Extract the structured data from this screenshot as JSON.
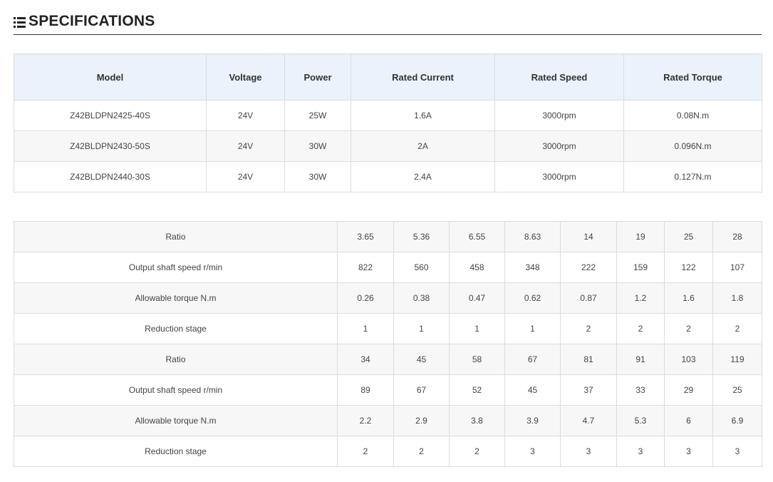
{
  "header": {
    "title": "SPECIFICATIONS",
    "icon": "list-icon"
  },
  "spec_table": {
    "columns": [
      "Model",
      "Voltage",
      "Power",
      "Rated Current",
      "Rated Speed",
      "Rated Torque"
    ],
    "rows": [
      [
        "Z42BLDPN2425-40S",
        "24V",
        "25W",
        "1.6A",
        "3000rpm",
        "0.08N.m"
      ],
      [
        "Z42BLDPN2430-50S",
        "24V",
        "30W",
        "2A",
        "3000rpm",
        "0.096N.m"
      ],
      [
        "Z42BLDPN2440-30S",
        "24V",
        "30W",
        "2.4A",
        "3000rpm",
        "0.127N.m"
      ]
    ]
  },
  "ratio_table": {
    "rows": [
      [
        "Ratio",
        "3.65",
        "5.36",
        "6.55",
        "8.63",
        "14",
        "19",
        "25",
        "28"
      ],
      [
        "Output shaft speed r/min",
        "822",
        "560",
        "458",
        "348",
        "222",
        "159",
        "122",
        "107"
      ],
      [
        "Allowable torque N.m",
        "0.26",
        "0.38",
        "0.47",
        "0.62",
        "0.87",
        "1.2",
        "1.6",
        "1.8"
      ],
      [
        "Reduction stage",
        "1",
        "1",
        "1",
        "1",
        "2",
        "2",
        "2",
        "2"
      ],
      [
        "Ratio",
        "34",
        "45",
        "58",
        "67",
        "81",
        "91",
        "103",
        "119"
      ],
      [
        "Output shaft speed r/min",
        "89",
        "67",
        "52",
        "45",
        "37",
        "33",
        "29",
        "25"
      ],
      [
        "Allowable torque N.m",
        "2.2",
        "2.9",
        "3.8",
        "3.9",
        "4.7",
        "5.3",
        "6",
        "6.9"
      ],
      [
        "Reduction stage",
        "2",
        "2",
        "2",
        "3",
        "3",
        "3",
        "3",
        "3"
      ]
    ]
  }
}
